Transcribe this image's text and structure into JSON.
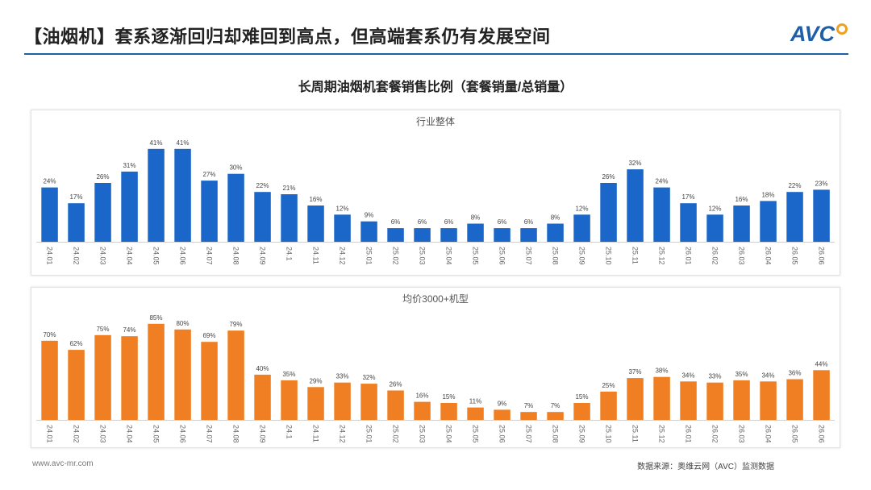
{
  "header": {
    "title": "【油烟机】套系逐渐回归却难回到高点，但高端套系仍有发展空间",
    "logo_text": "AVC"
  },
  "colors": {
    "accent_line": "#1f5fa8",
    "logo_blue": "#1f5fa8",
    "logo_orange": "#f0a020"
  },
  "footer": {
    "website": "www.avc-mr.com",
    "source": "数据来源：奥维云网（AVC）监测数据"
  },
  "chart_title": "长周期油烟机套餐销售比例（套餐销量/总销量）",
  "chart_data": [
    {
      "type": "bar",
      "title": "行业整体",
      "color": "#1a66c9",
      "categories": [
        "24.01",
        "24.02",
        "24.03",
        "24.04",
        "24.05",
        "24.06",
        "24.07",
        "24.08",
        "24.09",
        "24.1",
        "24.11",
        "24.12",
        "25.01",
        "25.02",
        "25.03",
        "25.04",
        "25.05",
        "25.06",
        "25.07",
        "25.08",
        "25.09",
        "25.10",
        "25.11",
        "25.12",
        "26.01",
        "26.02",
        "26.03",
        "26.04",
        "26.05",
        "26.06"
      ],
      "values": [
        24,
        17,
        26,
        31,
        41,
        41,
        27,
        30,
        22,
        21,
        16,
        12,
        9,
        6,
        6,
        6,
        8,
        6,
        6,
        8,
        12,
        26,
        32,
        24,
        17,
        12,
        16,
        18,
        22,
        23
      ],
      "value_suffix": "%",
      "ylim": [
        0,
        42
      ],
      "grid": false,
      "legend": "none"
    },
    {
      "type": "bar",
      "title": "均价3000+机型",
      "color": "#ef7f22",
      "categories": [
        "24.01",
        "24.02",
        "24.03",
        "24.04",
        "24.05",
        "24.06",
        "24.07",
        "24.08",
        "24.09",
        "24.1",
        "24.11",
        "24.12",
        "25.01",
        "25.02",
        "25.03",
        "25.04",
        "25.05",
        "25.06",
        "25.07",
        "25.08",
        "25.09",
        "25.10",
        "25.11",
        "25.12",
        "26.01",
        "26.02",
        "26.03",
        "26.04",
        "26.05",
        "26.06"
      ],
      "values": [
        70,
        62,
        75,
        74,
        85,
        80,
        69,
        79,
        40,
        35,
        29,
        33,
        32,
        26,
        16,
        15,
        11,
        9,
        7,
        7,
        15,
        25,
        37,
        38,
        34,
        33,
        35,
        34,
        36,
        44
      ],
      "value_suffix": "%",
      "ylim": [
        0,
        87
      ],
      "grid": false,
      "legend": "none"
    }
  ]
}
